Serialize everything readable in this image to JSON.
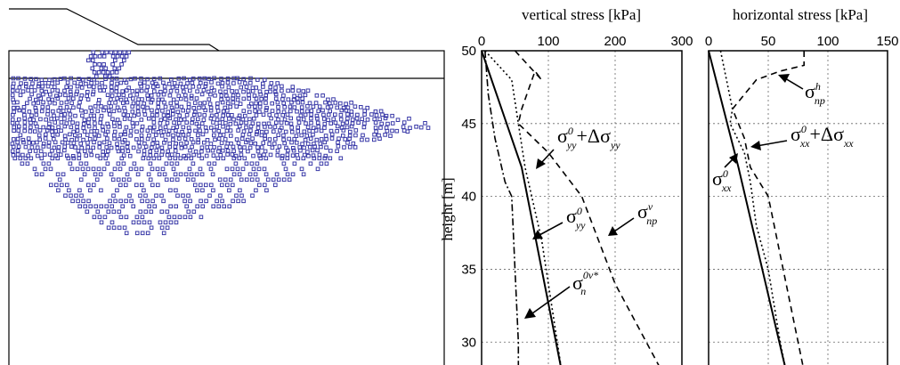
{
  "figure": {
    "left_panel": {
      "particle_color": "#3a3aa8",
      "stroke_color": "#000000"
    }
  },
  "chart_data": [
    {
      "type": "line",
      "title": "vertical stress  [kPa]",
      "xlabel": "vertical stress  [kPa]",
      "ylabel": "height  [m]",
      "xlim": [
        0,
        300
      ],
      "ylim": [
        28,
        50
      ],
      "x_ticks": [
        0,
        100,
        200,
        300
      ],
      "y_ticks": [
        30,
        35,
        40,
        45,
        50
      ],
      "grid": true,
      "series": [
        {
          "name": "σyy0",
          "style": "solid",
          "points": [
            [
              0,
              50
            ],
            [
              60,
              42
            ],
            [
              90,
              35
            ],
            [
              120,
              28
            ]
          ]
        },
        {
          "name": "σyy0+Δσyy",
          "style": "dotted",
          "points": [
            [
              5,
              50
            ],
            [
              45,
              48
            ],
            [
              55,
              45
            ],
            [
              65,
              42
            ],
            [
              75,
              40
            ],
            [
              90,
              37
            ],
            [
              100,
              34
            ],
            [
              110,
              31
            ],
            [
              120,
              28
            ]
          ]
        },
        {
          "name": "σnpv",
          "style": "dashed",
          "points": [
            [
              50,
              50
            ],
            [
              70,
              49
            ],
            [
              90,
              48
            ],
            [
              80,
              48.6
            ],
            [
              60,
              46
            ],
            [
              55,
              45
            ],
            [
              100,
              43
            ],
            [
              150,
              40
            ],
            [
              200,
              34
            ],
            [
              270,
              28
            ]
          ]
        },
        {
          "name": "σn0v*",
          "style": "dashdot",
          "points": [
            [
              5,
              50
            ],
            [
              10,
              47
            ],
            [
              20,
              44
            ],
            [
              35,
              41
            ],
            [
              45,
              40
            ],
            [
              50,
              35
            ],
            [
              55,
              30
            ],
            [
              55,
              28
            ]
          ]
        }
      ],
      "annotations": [
        {
          "label": "σ",
          "sup": "0",
          "sub": "yy",
          "suffix": "+Δσ",
          "suffix_sub": "yy"
        },
        {
          "label": "σ",
          "sup": "0",
          "sub": "yy"
        },
        {
          "label": "σ",
          "sup": "v",
          "sub": "np"
        },
        {
          "label": "σ",
          "sup": "0v*",
          "sub": "n"
        }
      ]
    },
    {
      "type": "line",
      "title": "horizontal stress  [kPa]",
      "xlabel": "horizontal stress  [kPa]",
      "ylabel": "",
      "xlim": [
        0,
        150
      ],
      "ylim": [
        28,
        50
      ],
      "x_ticks": [
        0,
        50,
        100,
        150
      ],
      "y_ticks": [
        30,
        35,
        40,
        45,
        50
      ],
      "grid": true,
      "series": [
        {
          "name": "σxx0",
          "style": "solid",
          "points": [
            [
              0,
              50
            ],
            [
              25,
              42
            ],
            [
              45,
              35
            ],
            [
              65,
              28
            ]
          ]
        },
        {
          "name": "σxx0+Δσxx",
          "style": "dotted",
          "points": [
            [
              10,
              50
            ],
            [
              15,
              48
            ],
            [
              20,
              46
            ],
            [
              18,
              45
            ],
            [
              30,
              43
            ],
            [
              35,
              41
            ],
            [
              40,
              38
            ],
            [
              50,
              35
            ],
            [
              60,
              30
            ],
            [
              65,
              28
            ]
          ]
        },
        {
          "name": "σnph",
          "style": "dashed",
          "points": [
            [
              80,
              50
            ],
            [
              80,
              49
            ],
            [
              60,
              48.6
            ],
            [
              40,
              48
            ],
            [
              30,
              47
            ],
            [
              20,
              46
            ],
            [
              30,
              44
            ],
            [
              35,
              42
            ],
            [
              50,
              40
            ],
            [
              60,
              36
            ],
            [
              70,
              32
            ],
            [
              80,
              28
            ]
          ]
        }
      ],
      "annotations": [
        {
          "label": "σ",
          "sup": "h",
          "sub": "np"
        },
        {
          "label": "σ",
          "sup": "0",
          "sub": "xx",
          "suffix": "+Δσ",
          "suffix_sub": "xx"
        },
        {
          "label": "σ",
          "sup": "0",
          "sub": "xx"
        }
      ]
    }
  ]
}
